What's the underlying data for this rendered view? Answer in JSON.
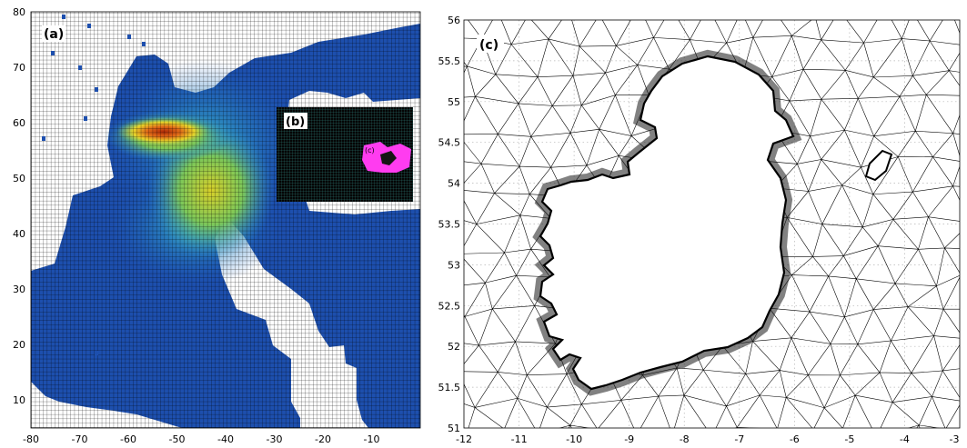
{
  "panel_a": {
    "label": "(a)",
    "inset_b_label": "(b)",
    "inset_c_label": "(c)",
    "x_ticks": [
      "-80",
      "-70",
      "-60",
      "-50",
      "-40",
      "-30",
      "-20",
      "-10"
    ],
    "y_ticks": [
      "80",
      "70",
      "60",
      "50",
      "40",
      "30",
      "20",
      "10"
    ],
    "x_range": [
      -80,
      0
    ],
    "y_range": [
      5,
      80
    ],
    "inset_b_extent": {
      "lon": [
        -29,
        -2
      ],
      "lat": [
        46,
        63
      ]
    },
    "inset_c_extent": {
      "lon": [
        -12,
        -3
      ],
      "lat": [
        51,
        56
      ]
    },
    "colors": {
      "grid": "#000000",
      "land": "#ffffff",
      "inset_b_fill": "#050505",
      "inset_b_grid": "#3fb0a8",
      "inset_c_fill": "#ff3cf0"
    }
  },
  "panel_c": {
    "label": "(c)",
    "x_ticks": [
      "-12",
      "-11",
      "-10",
      "-9",
      "-8",
      "-7",
      "-6",
      "-5",
      "-4",
      "-3"
    ],
    "y_ticks": [
      "56",
      "55.5",
      "55",
      "54.5",
      "54",
      "53.5",
      "53",
      "52.5",
      "52",
      "51.5",
      "51"
    ],
    "x_range": [
      -12,
      -3
    ],
    "y_range": [
      51,
      56
    ],
    "grid": "dotted",
    "colors": {
      "mesh": "#000000",
      "land": "#ffffff",
      "gridline": "#b5b5b5"
    }
  }
}
